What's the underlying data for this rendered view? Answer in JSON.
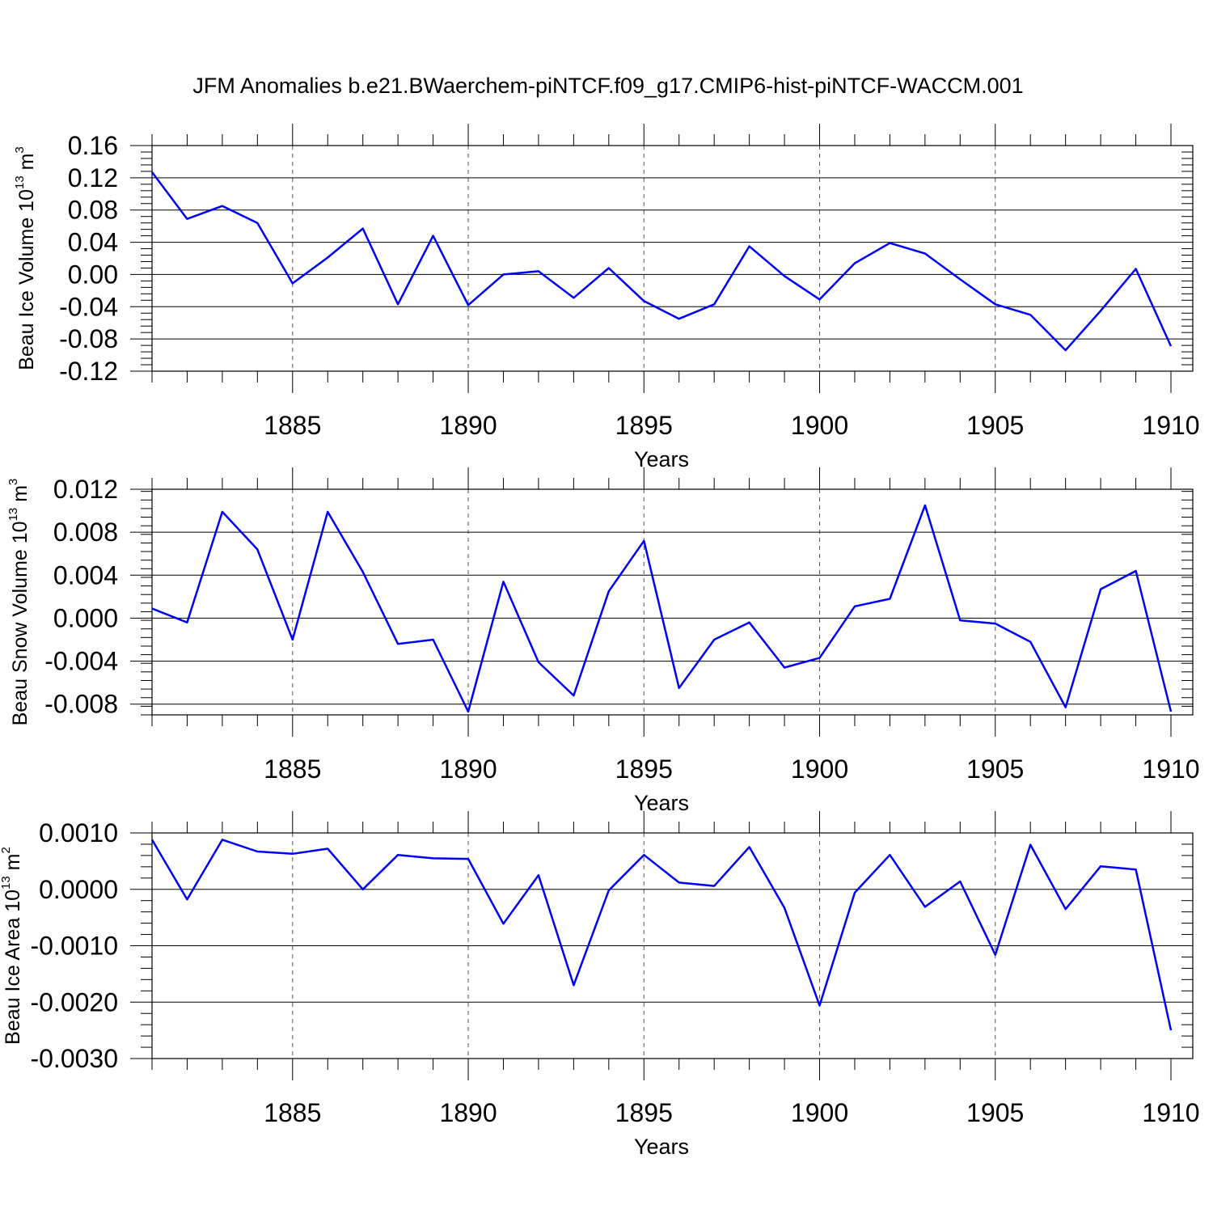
{
  "title": "JFM Anomalies b.e21.BWaerchem-piNTCF.f09_g17.CMIP6-hist-piNTCF-WACCM.001",
  "colors": {
    "line": "#0000ff",
    "axis": "#000000",
    "grid": "#555555"
  },
  "chart_data": [
    {
      "type": "line",
      "ylabel": {
        "main": "Beau Ice Volume 10",
        "exp": "13",
        "unit": " m",
        "unit_exp": "3"
      },
      "xlabel": "Years",
      "xlim": [
        1881,
        1910
      ],
      "ylim": [
        -0.12,
        0.16
      ],
      "xticks": [
        1885,
        1890,
        1895,
        1900,
        1905,
        1910
      ],
      "yticks": [
        "0.16",
        "0.12",
        "0.08",
        "0.04",
        "0.00",
        "-0.04",
        "-0.08",
        "-0.12"
      ],
      "x": [
        1881,
        1882,
        1883,
        1884,
        1885,
        1886,
        1887,
        1888,
        1889,
        1890,
        1891,
        1892,
        1893,
        1894,
        1895,
        1896,
        1897,
        1898,
        1899,
        1900,
        1901,
        1902,
        1903,
        1904,
        1905,
        1906,
        1907,
        1908,
        1909,
        1910
      ],
      "values": [
        0.127,
        0.069,
        0.085,
        0.064,
        -0.011,
        0.021,
        0.057,
        -0.037,
        0.048,
        -0.038,
        0.0,
        0.004,
        -0.029,
        0.008,
        -0.033,
        -0.055,
        -0.037,
        0.035,
        -0.002,
        -0.031,
        0.014,
        0.039,
        0.026,
        -0.006,
        -0.037,
        -0.05,
        -0.094,
        -0.045,
        0.007,
        -0.089
      ]
    },
    {
      "type": "line",
      "ylabel": {
        "main": "Beau Snow Volume 10",
        "exp": "13",
        "unit": " m",
        "unit_exp": "3"
      },
      "xlabel": "Years",
      "xlim": [
        1881,
        1910
      ],
      "ylim": [
        -0.009,
        0.012
      ],
      "xticks": [
        1885,
        1890,
        1895,
        1900,
        1905,
        1910
      ],
      "yticks": [
        "0.012",
        "0.008",
        "0.004",
        "0.000",
        "-0.004",
        "-0.008"
      ],
      "x": [
        1881,
        1882,
        1883,
        1884,
        1885,
        1886,
        1887,
        1888,
        1889,
        1890,
        1891,
        1892,
        1893,
        1894,
        1895,
        1896,
        1897,
        1898,
        1899,
        1900,
        1901,
        1902,
        1903,
        1904,
        1905,
        1906,
        1907,
        1908,
        1909,
        1910
      ],
      "values": [
        0.0009,
        -0.0004,
        0.0099,
        0.0064,
        -0.002,
        0.0099,
        0.0043,
        -0.0024,
        -0.002,
        -0.0087,
        0.0034,
        -0.0041,
        -0.0072,
        0.0025,
        0.0072,
        -0.0065,
        -0.002,
        -0.0004,
        -0.0046,
        -0.0037,
        0.0011,
        0.0018,
        0.0105,
        -0.0002,
        -0.0005,
        -0.0022,
        -0.0083,
        0.0027,
        0.0044,
        -0.0087
      ]
    },
    {
      "type": "line",
      "ylabel": {
        "main": "Beau Ice Area 10",
        "exp": "13",
        "unit": " m",
        "unit_exp": "2"
      },
      "xlabel": "Years",
      "xlim": [
        1881,
        1910
      ],
      "ylim": [
        -0.003,
        0.001
      ],
      "xticks": [
        1885,
        1890,
        1895,
        1900,
        1905,
        1910
      ],
      "yticks": [
        "0.0010",
        "0.0000",
        "-0.0010",
        "-0.0020",
        "-0.0030"
      ],
      "x": [
        1881,
        1882,
        1883,
        1884,
        1885,
        1886,
        1887,
        1888,
        1889,
        1890,
        1891,
        1892,
        1893,
        1894,
        1895,
        1896,
        1897,
        1898,
        1899,
        1900,
        1901,
        1902,
        1903,
        1904,
        1905,
        1906,
        1907,
        1908,
        1909,
        1910
      ],
      "values": [
        0.00088,
        -0.00018,
        0.00088,
        0.00067,
        0.00063,
        0.00072,
        0.0,
        0.00061,
        0.00055,
        0.00054,
        -0.00061,
        0.00025,
        -0.0017,
        -2e-05,
        0.00061,
        0.00012,
        6e-05,
        0.00075,
        -0.00033,
        -0.00206,
        -6e-05,
        0.00061,
        -0.00031,
        0.00014,
        -0.00116,
        0.00079,
        -0.00035,
        0.00041,
        0.00035,
        -0.0025
      ]
    }
  ]
}
